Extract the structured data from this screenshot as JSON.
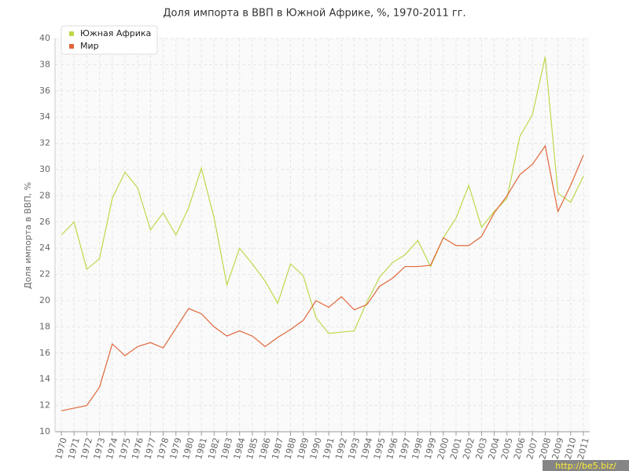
{
  "chart_data": {
    "type": "line",
    "title": "Доля импорта в ВВП в Южной Африке, %, 1970-2011 гг.",
    "y_label": "Доля импорта в ВВП, %",
    "categories": [
      "1970",
      "1971",
      "1972",
      "1973",
      "1974",
      "1975",
      "1976",
      "1977",
      "1978",
      "1979",
      "1980",
      "1981",
      "1982",
      "1983",
      "1984",
      "1985",
      "1986",
      "1987",
      "1988",
      "1989",
      "1990",
      "1991",
      "1992",
      "1993",
      "1994",
      "1995",
      "1996",
      "1997",
      "1998",
      "1999",
      "2000",
      "2001",
      "2002",
      "2003",
      "2004",
      "2005",
      "2006",
      "2007",
      "2008",
      "2009",
      "2010",
      "2011"
    ],
    "series": [
      {
        "name": "Южная Африка",
        "color": "#bcd94a",
        "values": [
          25.0,
          26.0,
          22.4,
          23.2,
          27.8,
          29.8,
          28.6,
          25.4,
          26.7,
          25.0,
          27.1,
          30.1,
          26.3,
          21.2,
          24.0,
          22.8,
          21.5,
          19.8,
          22.8,
          21.9,
          18.7,
          17.5,
          17.6,
          17.7,
          19.9,
          21.8,
          22.9,
          23.5,
          24.6,
          22.6,
          24.8,
          26.3,
          28.8,
          25.6,
          26.8,
          27.8,
          32.5,
          34.2,
          38.6,
          28.2,
          27.5,
          29.5
        ]
      },
      {
        "name": "Мир",
        "color": "#e0673a",
        "values": [
          11.6,
          11.8,
          12.0,
          13.4,
          16.7,
          15.8,
          16.5,
          16.8,
          16.4,
          17.9,
          19.4,
          19.0,
          18.0,
          17.3,
          17.7,
          17.3,
          16.5,
          17.2,
          17.8,
          18.5,
          20.0,
          19.5,
          20.3,
          19.3,
          19.7,
          21.1,
          21.7,
          22.6,
          22.6,
          22.7,
          24.8,
          24.2,
          24.2,
          24.9,
          26.7,
          28.0,
          29.6,
          30.4,
          31.8,
          26.8,
          28.8,
          31.1
        ]
      }
    ],
    "ylim": [
      10,
      40
    ],
    "yticks": [
      10,
      12,
      14,
      16,
      18,
      20,
      22,
      24,
      26,
      28,
      30,
      32,
      34,
      36,
      38,
      40
    ],
    "grid": true,
    "legend": "top-left",
    "watermark": "http://be5.biz/"
  }
}
